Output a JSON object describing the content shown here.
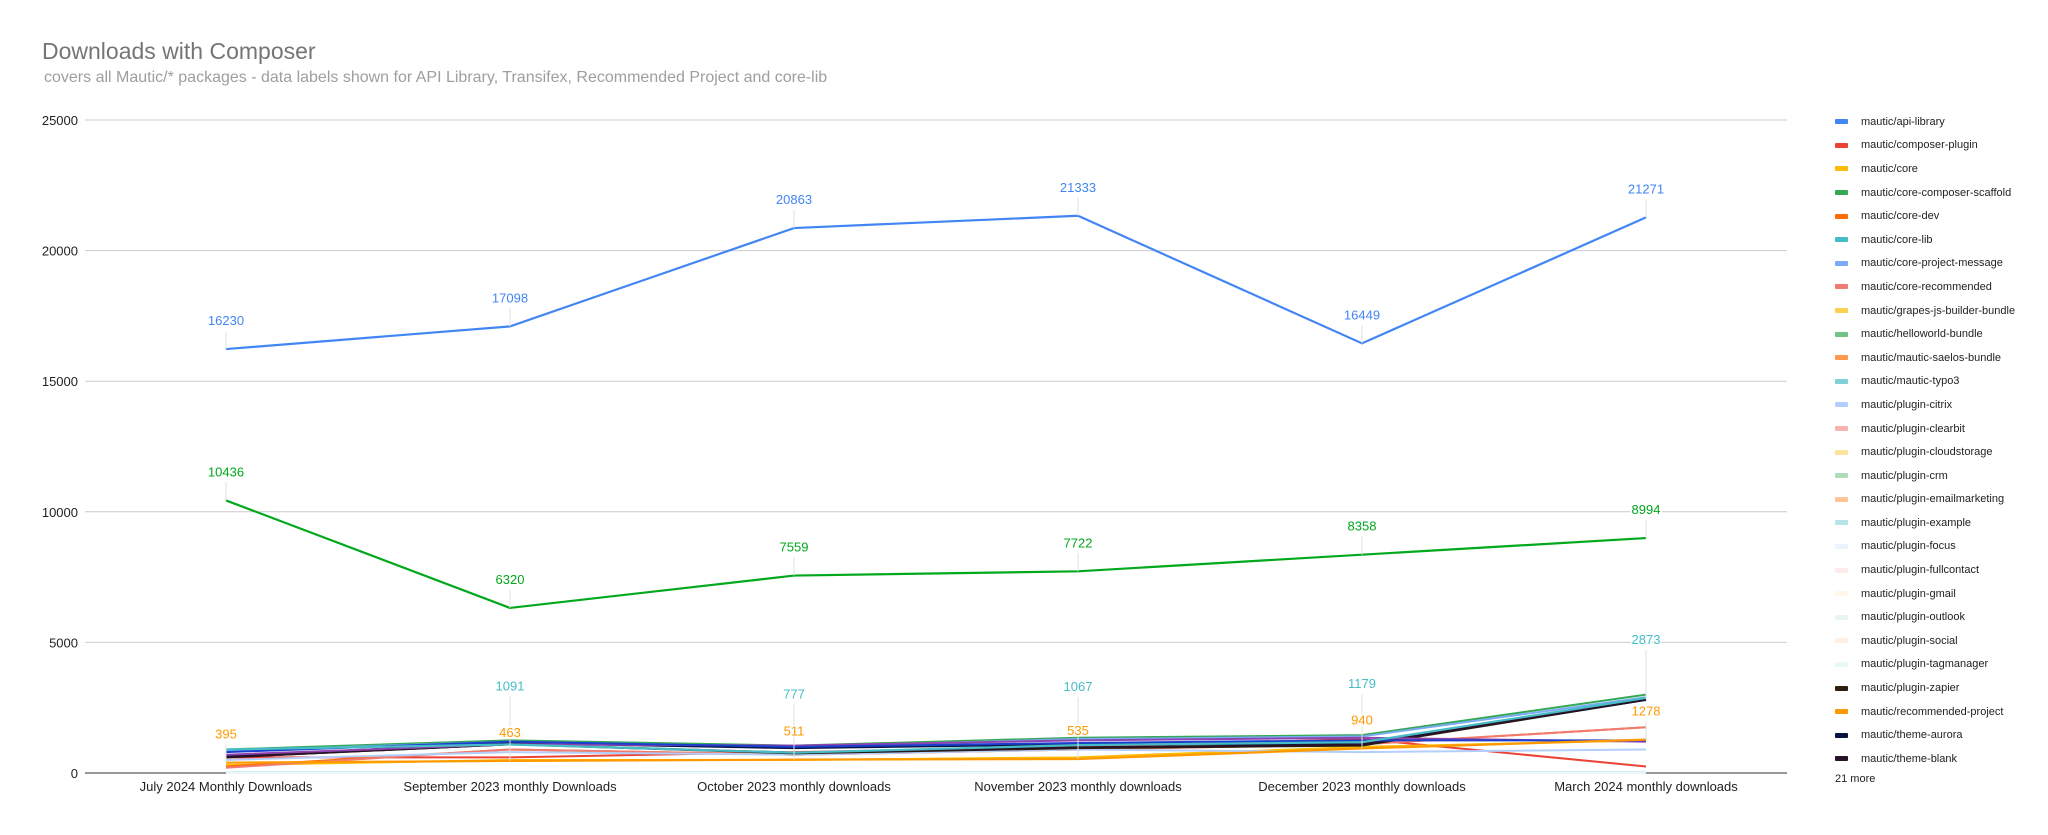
{
  "chart_data": {
    "type": "line",
    "title": "Downloads with Composer",
    "subtitle": "covers all Mautic/* packages -  data labels shown for API Library, Transifex, Recommended Project and core-lib",
    "categories": [
      "July 2024 Monthly Downloads",
      "September 2023 monthly Downloads",
      "October 2023 monthly downloads",
      "November 2023 monthly downloads",
      "December 2023 monthly downloads",
      "March 2024 monthly downloads"
    ],
    "ylim": [
      0,
      25000
    ],
    "yticks": [
      "0",
      "5000",
      "10000",
      "15000",
      "20000",
      "25000"
    ],
    "grid": true,
    "legend_position": "right",
    "legend_more": "21 more",
    "series": [
      {
        "name": "mautic/api-library",
        "color": "#4285f4",
        "values": [
          16230,
          17098,
          20863,
          21333,
          16449,
          21271
        ],
        "labeled": true
      },
      {
        "name": "mautic/composer-plugin",
        "color": "#ea4335",
        "values": [
          600,
          600,
          800,
          1000,
          1300,
          250
        ]
      },
      {
        "name": "mautic/core",
        "color": "#fbbc04",
        "values": [
          300,
          500,
          500,
          600,
          1000,
          1250
        ]
      },
      {
        "name": "mautic/core-composer-scaffold",
        "color": "#34a853",
        "values": [
          900,
          1250,
          1050,
          1350,
          1450,
          3000
        ]
      },
      {
        "name": "mautic/core-dev",
        "color": "#ff6d01",
        "values": [
          250,
          900,
          700,
          900,
          1100,
          1750
        ]
      },
      {
        "name": "mautic/core-lib",
        "color": "#46bdc6",
        "values": [
          900,
          1091,
          777,
          1067,
          1179,
          2873
        ],
        "labeled": true,
        "label_first": false
      },
      {
        "name": "mautic/core-project-message",
        "color": "#7baaf7",
        "values": [
          850,
          1200,
          1000,
          1300,
          1400,
          2900
        ]
      },
      {
        "name": "mautic/core-recommended",
        "color": "#f07b72",
        "values": [
          200,
          900,
          700,
          900,
          1100,
          1750
        ]
      },
      {
        "name": "mautic/grapes-js-builder-bundle",
        "color": "#fcd04f",
        "values": [
          10,
          10,
          10,
          10,
          10,
          10
        ]
      },
      {
        "name": "mautic/helloworld-bundle",
        "color": "#71c287",
        "values": [
          10,
          10,
          10,
          10,
          10,
          10
        ]
      },
      {
        "name": "mautic/mautic-saelos-bundle",
        "color": "#ff994d",
        "values": [
          10,
          10,
          10,
          10,
          10,
          10
        ]
      },
      {
        "name": "mautic/mautic-typo3",
        "color": "#7ed1d7",
        "values": [
          30,
          30,
          30,
          30,
          30,
          30
        ]
      },
      {
        "name": "mautic/plugin-citrix",
        "color": "#b3cefb",
        "values": [
          500,
          800,
          700,
          900,
          800,
          900
        ]
      },
      {
        "name": "mautic/plugin-clearbit",
        "color": "#f7b4ae",
        "values": [
          10,
          10,
          10,
          10,
          10,
          10
        ]
      },
      {
        "name": "mautic/plugin-cloudstorage",
        "color": "#fde49b",
        "values": [
          10,
          10,
          10,
          10,
          10,
          10
        ]
      },
      {
        "name": "mautic/plugin-crm",
        "color": "#aedcba",
        "values": [
          10,
          10,
          10,
          10,
          10,
          10
        ]
      },
      {
        "name": "mautic/plugin-emailmarketing",
        "color": "#ffc599",
        "values": [
          10,
          10,
          10,
          10,
          10,
          10
        ]
      },
      {
        "name": "mautic/plugin-example",
        "color": "#b5e5e8",
        "values": [
          10,
          10,
          10,
          10,
          10,
          10
        ]
      },
      {
        "name": "mautic/plugin-focus",
        "color": "#ecf3fe",
        "values": [
          10,
          10,
          10,
          10,
          10,
          10
        ]
      },
      {
        "name": "mautic/plugin-fullcontact",
        "color": "#fdeceb",
        "values": [
          10,
          10,
          10,
          10,
          10,
          10
        ]
      },
      {
        "name": "mautic/plugin-gmail",
        "color": "#fff8e6",
        "values": [
          10,
          10,
          10,
          10,
          10,
          10
        ]
      },
      {
        "name": "mautic/plugin-outlook",
        "color": "#eaf6ed",
        "values": [
          10,
          10,
          10,
          10,
          10,
          10
        ]
      },
      {
        "name": "mautic/plugin-social",
        "color": "#fff0e6",
        "values": [
          10,
          10,
          10,
          10,
          10,
          10
        ]
      },
      {
        "name": "mautic/plugin-tagmanager",
        "color": "#ebf8f9",
        "values": [
          10,
          10,
          10,
          10,
          10,
          10
        ]
      },
      {
        "name": "mautic/plugin-zapier",
        "color": "#2d1f0d",
        "values": [
          600,
          1100,
          750,
          950,
          1050,
          2800
        ]
      },
      {
        "name": "mautic/recommended-project",
        "color": "#ff9900",
        "values": [
          395,
          463,
          511,
          535,
          940,
          1278
        ],
        "labeled": true
      },
      {
        "name": "mautic/theme-aurora",
        "color": "#0b1441",
        "values": [
          650,
          1150,
          950,
          1100,
          1100,
          2800
        ]
      },
      {
        "name": "mautic/theme-blank",
        "color": "#2a1226",
        "values": [
          600,
          1100,
          780,
          980,
          1080,
          2820
        ]
      },
      {
        "color": "#8e44ad",
        "values": [
          700,
          1100,
          1050,
          1250,
          1350,
          1200
        ]
      },
      {
        "color": "#1a3fcf",
        "values": [
          800,
          1200,
          1000,
          1150,
          1250,
          1250
        ]
      },
      {
        "color": "#00a81c",
        "values": [
          10436,
          6320,
          7559,
          7722,
          8358,
          8994
        ],
        "labeled": true
      }
    ]
  }
}
